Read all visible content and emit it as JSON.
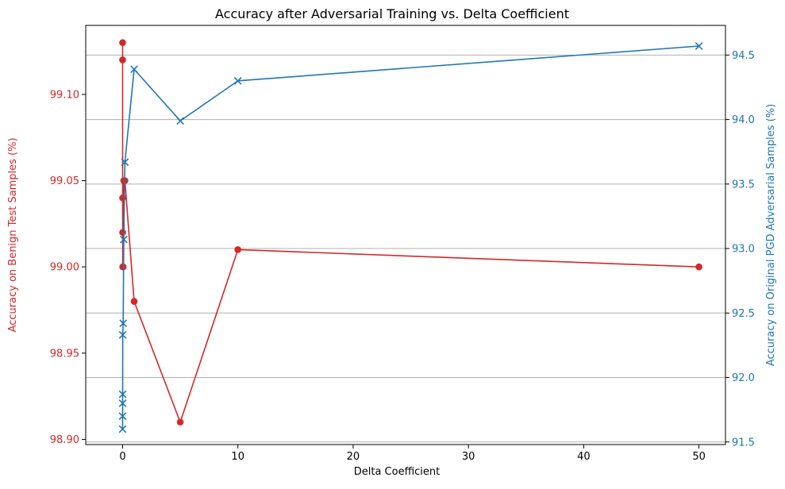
{
  "chart_data": {
    "type": "line",
    "title": "Accuracy after Adversarial Training vs. Delta Coefficient",
    "xlabel": "Delta Coefficient",
    "ylabel_left": "Accuracy on Benign Test Samples (%)",
    "ylabel_right": "Accuracy on Original PGD Adversarial Samples (%)",
    "xlim": [
      -3.2,
      52.3
    ],
    "ylim_left": [
      98.897,
      99.14
    ],
    "ylim_right": [
      91.48,
      94.73
    ],
    "x_ticks": [
      0,
      10,
      20,
      30,
      40,
      50
    ],
    "y_ticks_left": [
      98.9,
      98.95,
      99.0,
      99.05,
      99.1
    ],
    "y_ticks_left_labels": [
      "98.90",
      "98.95",
      "99.00",
      "99.05",
      "99.10"
    ],
    "y_ticks_right": [
      91.5,
      92.0,
      92.5,
      93.0,
      93.5,
      94.0,
      94.5
    ],
    "y_ticks_right_labels": [
      "91.5",
      "92.0",
      "92.5",
      "93.0",
      "93.5",
      "94.0",
      "94.5"
    ],
    "grid": "horizontal lines at right-axis ticks",
    "colors": {
      "left": "#d62728",
      "right": "#1f77b4",
      "grid": "#b0b0b0"
    },
    "series": [
      {
        "axis": "left",
        "marker": "circle",
        "x": [
          0,
          0.0001,
          0.001,
          0.005,
          0.01,
          0.05,
          0.1,
          0.2,
          1,
          5,
          10,
          50
        ],
        "y": [
          99.13,
          99.12,
          99.04,
          99.02,
          99.0,
          99.0,
          99.05,
          99.05,
          98.98,
          98.91,
          99.01,
          99.0
        ]
      },
      {
        "axis": "right",
        "marker": "x",
        "x": [
          0,
          0.0001,
          0.001,
          0.005,
          0.01,
          0.05,
          0.1,
          0.2,
          1,
          5,
          10,
          50
        ],
        "y": [
          91.6,
          91.7,
          91.8,
          91.87,
          92.33,
          92.42,
          93.07,
          93.67,
          94.39,
          93.99,
          94.3,
          94.57
        ]
      }
    ]
  }
}
